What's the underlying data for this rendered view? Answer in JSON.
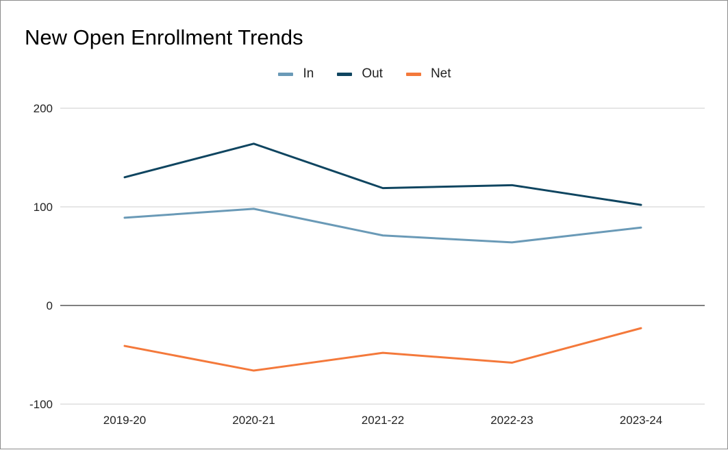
{
  "chart_data": {
    "type": "line",
    "title": "New Open Enrollment Trends",
    "xlabel": "",
    "ylabel": "",
    "categories": [
      "2019-20",
      "2020-21",
      "2021-22",
      "2022-23",
      "2023-24"
    ],
    "ylim": [
      -100,
      200
    ],
    "yticks": [
      -100,
      0,
      100,
      200
    ],
    "grid": true,
    "legend_position": "top-center",
    "series": [
      {
        "name": "In",
        "color": "#6a9ab7",
        "values": [
          89,
          98,
          71,
          64,
          79
        ]
      },
      {
        "name": "Out",
        "color": "#0f4560",
        "values": [
          130,
          164,
          119,
          122,
          102
        ]
      },
      {
        "name": "Net",
        "color": "#f4793b",
        "values": [
          -41,
          -66,
          -48,
          -58,
          -23
        ]
      }
    ]
  }
}
